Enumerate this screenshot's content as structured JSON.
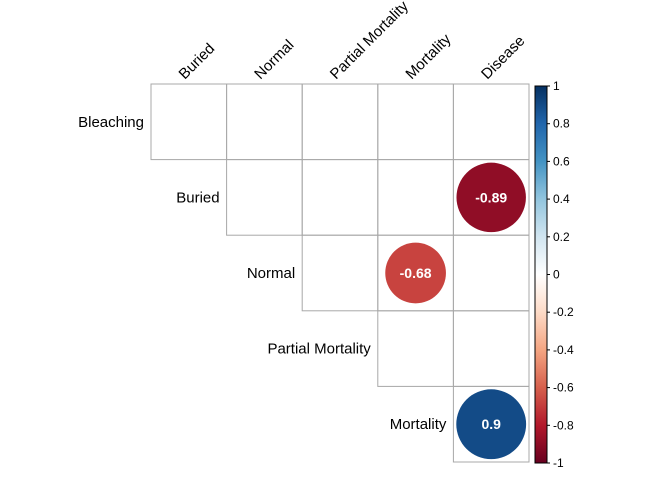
{
  "chart_data": {
    "type": "heatmap",
    "title": "",
    "rows": [
      "Bleaching",
      "Buried",
      "Normal",
      "Partial Mortality",
      "Mortality"
    ],
    "columns": [
      "Buried",
      "Normal",
      "Partial Mortality",
      "Mortality",
      "Disease"
    ],
    "cells": [
      {
        "row": "Buried",
        "column": "Disease",
        "value": -0.89,
        "label": "-0.89"
      },
      {
        "row": "Normal",
        "column": "Mortality",
        "value": -0.68,
        "label": "-0.68"
      },
      {
        "row": "Mortality",
        "column": "Disease",
        "value": 0.9,
        "label": "0.9"
      }
    ],
    "legend": {
      "range": [
        -1,
        1
      ],
      "ticks": [
        "1",
        "0.8",
        "0.6",
        "0.4",
        "0.2",
        "0",
        "-0.2",
        "-0.4",
        "-0.6",
        "-0.8",
        "-1"
      ],
      "placement": "right",
      "colors": [
        "#67001F",
        "#B2182B",
        "#D6604D",
        "#F4A582",
        "#FDDBC7",
        "#FFFFFF",
        "#D1E5F0",
        "#92C5DE",
        "#4393C3",
        "#2166AC",
        "#053061"
      ]
    },
    "layout": "upper-triangle",
    "grid": true
  }
}
